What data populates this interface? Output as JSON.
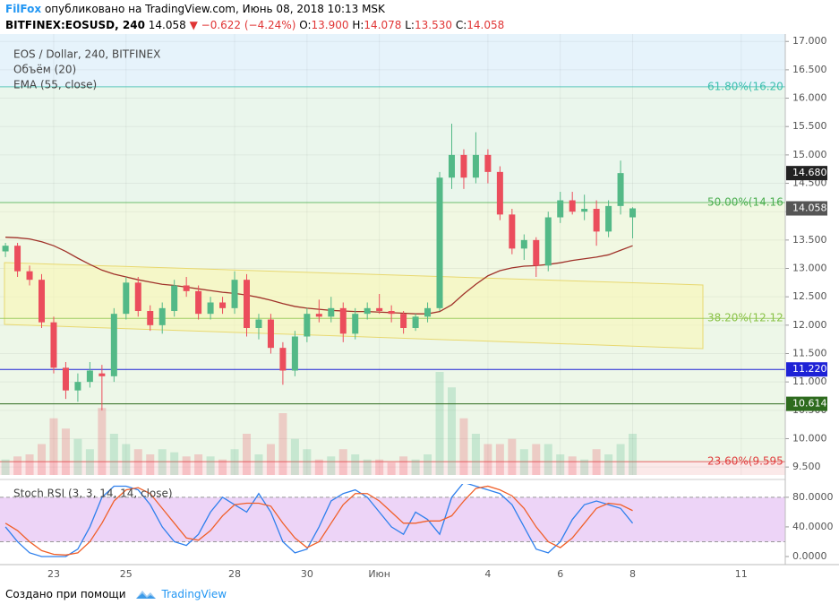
{
  "header": {
    "user": "FilFox",
    "published": "опубликовано на TradingView.com, Июнь 08, 2018 10:13 MSK",
    "symbol": "BITFINEX:EOSUSD, 240",
    "last": "14.058",
    "change": "▼ −0.622 (−4.24%)",
    "o_label": "O:",
    "o": "13.900",
    "h_label": "H:",
    "h": "14.078",
    "l_label": "L:",
    "l": "13.530",
    "c_label": "C:",
    "c": "14.058"
  },
  "footer": {
    "text": "Создано при помощи",
    "brand": "TradingView"
  },
  "chart_data": {
    "type": "candlestick",
    "title": "EOS / Dollar, 240, BITFINEX",
    "categories": [
      null,
      null,
      null,
      null,
      "23",
      null,
      null,
      null,
      null,
      null,
      "25",
      null,
      null,
      null,
      null,
      null,
      null,
      null,
      null,
      "28",
      null,
      null,
      null,
      null,
      null,
      "30",
      null,
      null,
      null,
      null,
      null,
      "Июн",
      null,
      null,
      null,
      null,
      null,
      null,
      null,
      null,
      "4",
      null,
      null,
      null,
      null,
      null,
      "6",
      null,
      null,
      null,
      null,
      null,
      "8",
      null,
      null,
      null,
      null,
      null,
      null,
      null,
      null,
      "11"
    ],
    "up_color": "#53b987",
    "down_color": "#eb4d5c",
    "ohlc": [
      [
        13.3,
        13.45,
        13.2,
        13.4
      ],
      [
        13.4,
        13.45,
        12.85,
        12.95
      ],
      [
        12.95,
        13.05,
        12.7,
        12.8
      ],
      [
        12.8,
        12.9,
        11.95,
        12.05
      ],
      [
        12.05,
        12.15,
        11.15,
        11.25
      ],
      [
        11.25,
        11.35,
        10.7,
        10.85
      ],
      [
        10.85,
        11.15,
        10.65,
        11.0
      ],
      [
        11.0,
        11.35,
        10.9,
        11.2
      ],
      [
        11.15,
        11.3,
        10.5,
        11.1
      ],
      [
        11.1,
        12.3,
        11.0,
        12.2
      ],
      [
        12.2,
        12.85,
        12.1,
        12.75
      ],
      [
        12.75,
        12.85,
        12.15,
        12.25
      ],
      [
        12.25,
        12.35,
        11.9,
        12.0
      ],
      [
        12.0,
        12.4,
        11.85,
        12.3
      ],
      [
        12.25,
        12.8,
        12.15,
        12.7
      ],
      [
        12.7,
        12.85,
        12.5,
        12.6
      ],
      [
        12.6,
        12.7,
        12.1,
        12.2
      ],
      [
        12.2,
        12.5,
        12.1,
        12.4
      ],
      [
        12.4,
        12.5,
        12.2,
        12.3
      ],
      [
        12.3,
        12.95,
        12.2,
        12.8
      ],
      [
        12.8,
        12.9,
        11.8,
        11.95
      ],
      [
        11.95,
        12.2,
        11.75,
        12.1
      ],
      [
        12.1,
        12.2,
        11.5,
        11.6
      ],
      [
        11.6,
        11.7,
        10.95,
        11.2
      ],
      [
        11.2,
        11.9,
        11.1,
        11.8
      ],
      [
        11.8,
        12.3,
        11.7,
        12.2
      ],
      [
        12.2,
        12.45,
        12.05,
        12.15
      ],
      [
        12.15,
        12.5,
        12.05,
        12.3
      ],
      [
        12.3,
        12.4,
        11.7,
        11.85
      ],
      [
        11.85,
        12.3,
        11.75,
        12.2
      ],
      [
        12.2,
        12.4,
        12.1,
        12.3
      ],
      [
        12.3,
        12.55,
        12.2,
        12.25
      ],
      [
        12.25,
        12.35,
        12.05,
        12.2
      ],
      [
        12.2,
        12.25,
        11.85,
        11.95
      ],
      [
        11.95,
        12.2,
        11.9,
        12.15
      ],
      [
        12.15,
        12.4,
        12.05,
        12.3
      ],
      [
        12.3,
        14.7,
        12.25,
        14.6
      ],
      [
        14.6,
        15.55,
        14.4,
        15.0
      ],
      [
        15.0,
        15.1,
        14.4,
        14.6
      ],
      [
        14.6,
        15.4,
        14.5,
        15.0
      ],
      [
        15.0,
        15.1,
        14.5,
        14.7
      ],
      [
        14.7,
        14.8,
        13.85,
        13.95
      ],
      [
        13.95,
        14.05,
        13.25,
        13.35
      ],
      [
        13.35,
        13.6,
        13.15,
        13.5
      ],
      [
        13.5,
        13.55,
        12.85,
        13.05
      ],
      [
        13.05,
        14.0,
        12.95,
        13.9
      ],
      [
        13.9,
        14.35,
        13.8,
        14.2
      ],
      [
        14.2,
        14.35,
        13.95,
        14.0
      ],
      [
        14.0,
        14.3,
        13.85,
        14.05
      ],
      [
        14.05,
        14.2,
        13.4,
        13.65
      ],
      [
        13.65,
        14.2,
        13.55,
        14.1
      ],
      [
        14.1,
        14.9,
        13.95,
        14.68
      ],
      [
        13.9,
        14.078,
        13.53,
        14.058
      ],
      null,
      null,
      null,
      null,
      null,
      null,
      null,
      null,
      null
    ],
    "ylim": [
      9.36,
      17.13
    ],
    "yticks": [
      {
        "value": 9.5,
        "label": "9.500"
      },
      {
        "value": 10,
        "label": "10.000"
      },
      {
        "value": 10.5,
        "label": "10.500"
      },
      {
        "value": 11,
        "label": "11.000"
      },
      {
        "value": 11.5,
        "label": "11.500"
      },
      {
        "value": 12,
        "label": "12.000"
      },
      {
        "value": 12.5,
        "label": "12.500"
      },
      {
        "value": 13,
        "label": "13.000"
      },
      {
        "value": 13.5,
        "label": "13.500"
      },
      {
        "value": 14,
        "label": "14.000"
      },
      {
        "value": 14.5,
        "label": "14.500"
      },
      {
        "value": 15,
        "label": "15.000"
      },
      {
        "value": 15.5,
        "label": "15.500"
      },
      {
        "value": 16,
        "label": "16.000"
      },
      {
        "value": 16.5,
        "label": "16.500"
      },
      {
        "value": 17,
        "label": "17.000"
      }
    ],
    "grid": true,
    "volume": {
      "title": "Объём (20)",
      "ylim": [
        0,
        100
      ],
      "values": [
        15,
        18,
        20,
        30,
        55,
        45,
        35,
        25,
        65,
        40,
        30,
        25,
        20,
        25,
        22,
        18,
        20,
        18,
        15,
        25,
        40,
        20,
        30,
        60,
        35,
        25,
        15,
        18,
        25,
        20,
        15,
        15,
        12,
        18,
        15,
        20,
        100,
        85,
        55,
        40,
        30,
        30,
        35,
        25,
        30,
        30,
        20,
        18,
        15,
        25,
        20,
        30,
        40,
        null,
        null,
        null,
        null,
        null,
        null,
        null,
        null,
        null
      ]
    },
    "ema": {
      "title": "EMA (55, close)",
      "color": "#a0322a",
      "values": [
        13.55,
        13.54,
        13.52,
        13.47,
        13.4,
        13.3,
        13.18,
        13.07,
        12.97,
        12.9,
        12.85,
        12.8,
        12.76,
        12.72,
        12.7,
        12.67,
        12.64,
        12.61,
        12.58,
        12.56,
        12.53,
        12.49,
        12.44,
        12.38,
        12.33,
        12.3,
        12.28,
        12.26,
        12.25,
        12.24,
        12.24,
        12.23,
        12.22,
        12.21,
        12.2,
        12.2,
        12.24,
        12.36,
        12.55,
        12.72,
        12.87,
        12.96,
        13.01,
        13.04,
        13.05,
        13.07,
        13.1,
        13.14,
        13.17,
        13.2,
        13.24,
        13.32,
        13.4,
        null,
        null,
        null,
        null,
        null,
        null,
        null,
        null,
        null
      ]
    },
    "fib_levels": [
      {
        "value": 16.2,
        "label": "61.80%(16.20",
        "color": "#3cbfae"
      },
      {
        "value": 14.16,
        "label": "50.00%(14.16",
        "color": "#4caf50"
      },
      {
        "value": 12.12,
        "label": "38.20%(12.12",
        "color": "#8bc34a"
      },
      {
        "value": 9.595,
        "label": "23.60%(9.595",
        "color": "#e04040"
      }
    ],
    "hlines": [
      {
        "value": 11.22,
        "label": "11.220",
        "color": "#1e22d6"
      },
      {
        "value": 10.614,
        "label": "10.614",
        "color": "#2e6b1e"
      }
    ],
    "price_tags": [
      {
        "value": 14.68,
        "label": "14.680",
        "color": "#222222"
      },
      {
        "value": 14.058,
        "label": "14.058",
        "color": "#555555"
      }
    ],
    "stoch": {
      "title": "Stoch RSI (3, 3, 14, 14, close)",
      "ylim": [
        -8.5,
        98
      ],
      "band": [
        20,
        80
      ],
      "yticks": [
        {
          "value": 0,
          "label": "0.0000"
        },
        {
          "value": 40,
          "label": "40.0000"
        },
        {
          "value": 80,
          "label": "80.0000"
        }
      ],
      "k_color": "#2f80ed",
      "d_color": "#f0602a",
      "k": [
        40,
        20,
        5,
        0,
        0,
        0,
        10,
        40,
        80,
        95,
        95,
        90,
        70,
        40,
        20,
        15,
        30,
        60,
        80,
        70,
        60,
        85,
        60,
        20,
        5,
        10,
        40,
        75,
        85,
        90,
        80,
        60,
        40,
        30,
        60,
        50,
        30,
        80,
        100,
        95,
        90,
        85,
        70,
        40,
        10,
        5,
        20,
        50,
        70,
        75,
        70,
        65,
        45,
        null,
        null,
        null,
        null,
        null,
        null,
        null,
        null,
        null
      ],
      "d": [
        45,
        35,
        20,
        8,
        3,
        2,
        5,
        20,
        45,
        75,
        90,
        93,
        85,
        65,
        45,
        25,
        22,
        35,
        55,
        70,
        72,
        72,
        68,
        45,
        25,
        12,
        20,
        45,
        70,
        85,
        85,
        75,
        60,
        45,
        45,
        48,
        48,
        55,
        75,
        92,
        95,
        90,
        82,
        65,
        40,
        20,
        12,
        25,
        45,
        65,
        72,
        70,
        62,
        null,
        null,
        null,
        null,
        null,
        null,
        null,
        null,
        null
      ]
    }
  }
}
